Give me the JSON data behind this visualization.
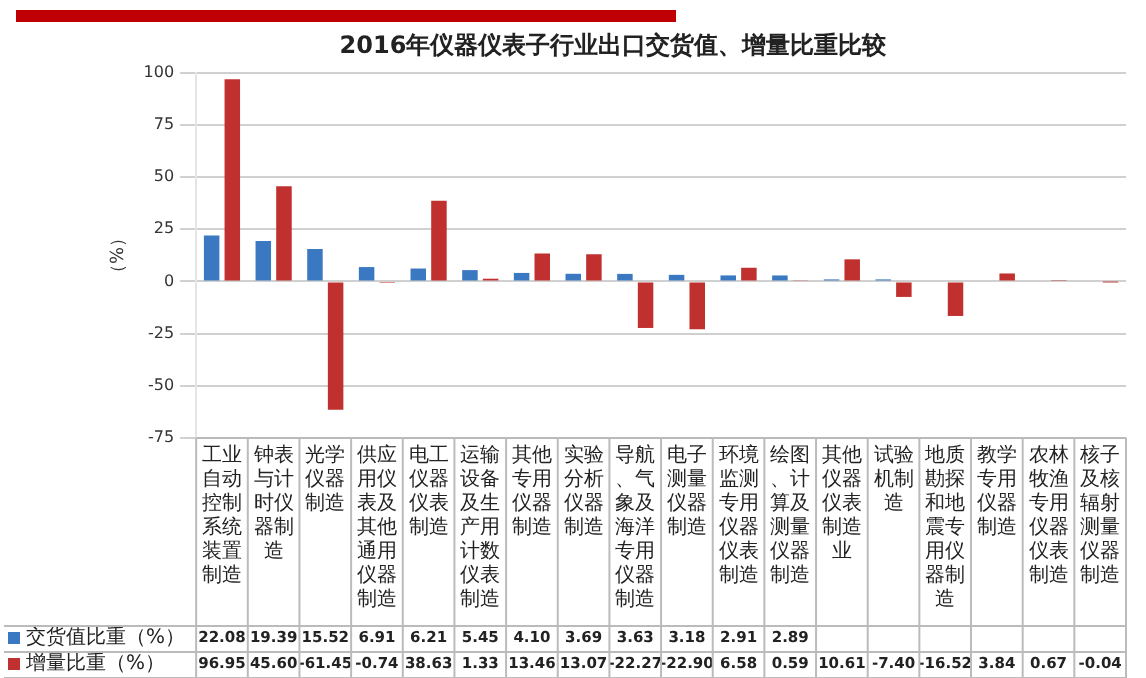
{
  "chart_data": {
    "type": "bar",
    "title": "2016年仪器仪表子行业出口交货值、增量比重比较",
    "ylabel": "（%）",
    "categories": [
      "工业自动控制系统装置制造",
      "钟表与计时仪器制造",
      "光学仪器制造",
      "供应用仪表及其他通用仪器制造",
      "电工仪器仪表制造",
      "运输设备及生产用计数仪表制造",
      "其他专用仪器制造",
      "实验分析仪器制造",
      "导航、气象及海洋专用仪器制造",
      "电子测量仪器制造",
      "环境监测专用仪器仪表制造",
      "绘图、计算及测量仪器制造",
      "其他仪器仪表制造业",
      "试验机制造",
      "地质勘探和地震专用仪器制造",
      "教学专用仪器制造",
      "农林牧渔专用仪器仪表制造",
      "核子及核辐射测量仪器制造"
    ],
    "series": [
      {
        "name": "交货值比重（%）",
        "color": "#3a78c2",
        "values": [
          22.08,
          19.39,
          15.52,
          6.91,
          6.21,
          5.45,
          4.1,
          3.69,
          3.63,
          3.18,
          2.91,
          2.89,
          1,
          1,
          null,
          null,
          0,
          0
        ],
        "value_labels": [
          "22.08",
          "19.39",
          "15.52",
          "6.91",
          "6.21",
          "5.45",
          "4.10",
          "3.69",
          "3.63",
          "3.18",
          "2.91",
          "2.89",
          null,
          null,
          null,
          null,
          null,
          null
        ]
      },
      {
        "name": "增量比重（%）",
        "color": "#c0302e",
        "values": [
          96.95,
          45.6,
          -61.45,
          -0.74,
          38.63,
          1.33,
          13.46,
          13.07,
          -22.27,
          -22.9,
          6.58,
          0.59,
          10.61,
          -7.4,
          -16.52,
          3.84,
          0.67,
          -0.04
        ],
        "value_labels": [
          "96.95",
          "45.60",
          "-61.45",
          "-0.74",
          "38.63",
          "1.33",
          "13.46",
          "13.07",
          "-22.27",
          "-22.90",
          "6.58",
          "0.59",
          "10.61",
          "-7.40",
          "-16.52",
          "3.84",
          "0.67",
          "-0.04"
        ]
      }
    ],
    "ylim": [
      -75,
      100
    ],
    "yticks": [
      -75,
      -50,
      -25,
      0,
      25,
      50,
      75,
      100
    ],
    "grid": "y",
    "legend": "bottom left"
  }
}
